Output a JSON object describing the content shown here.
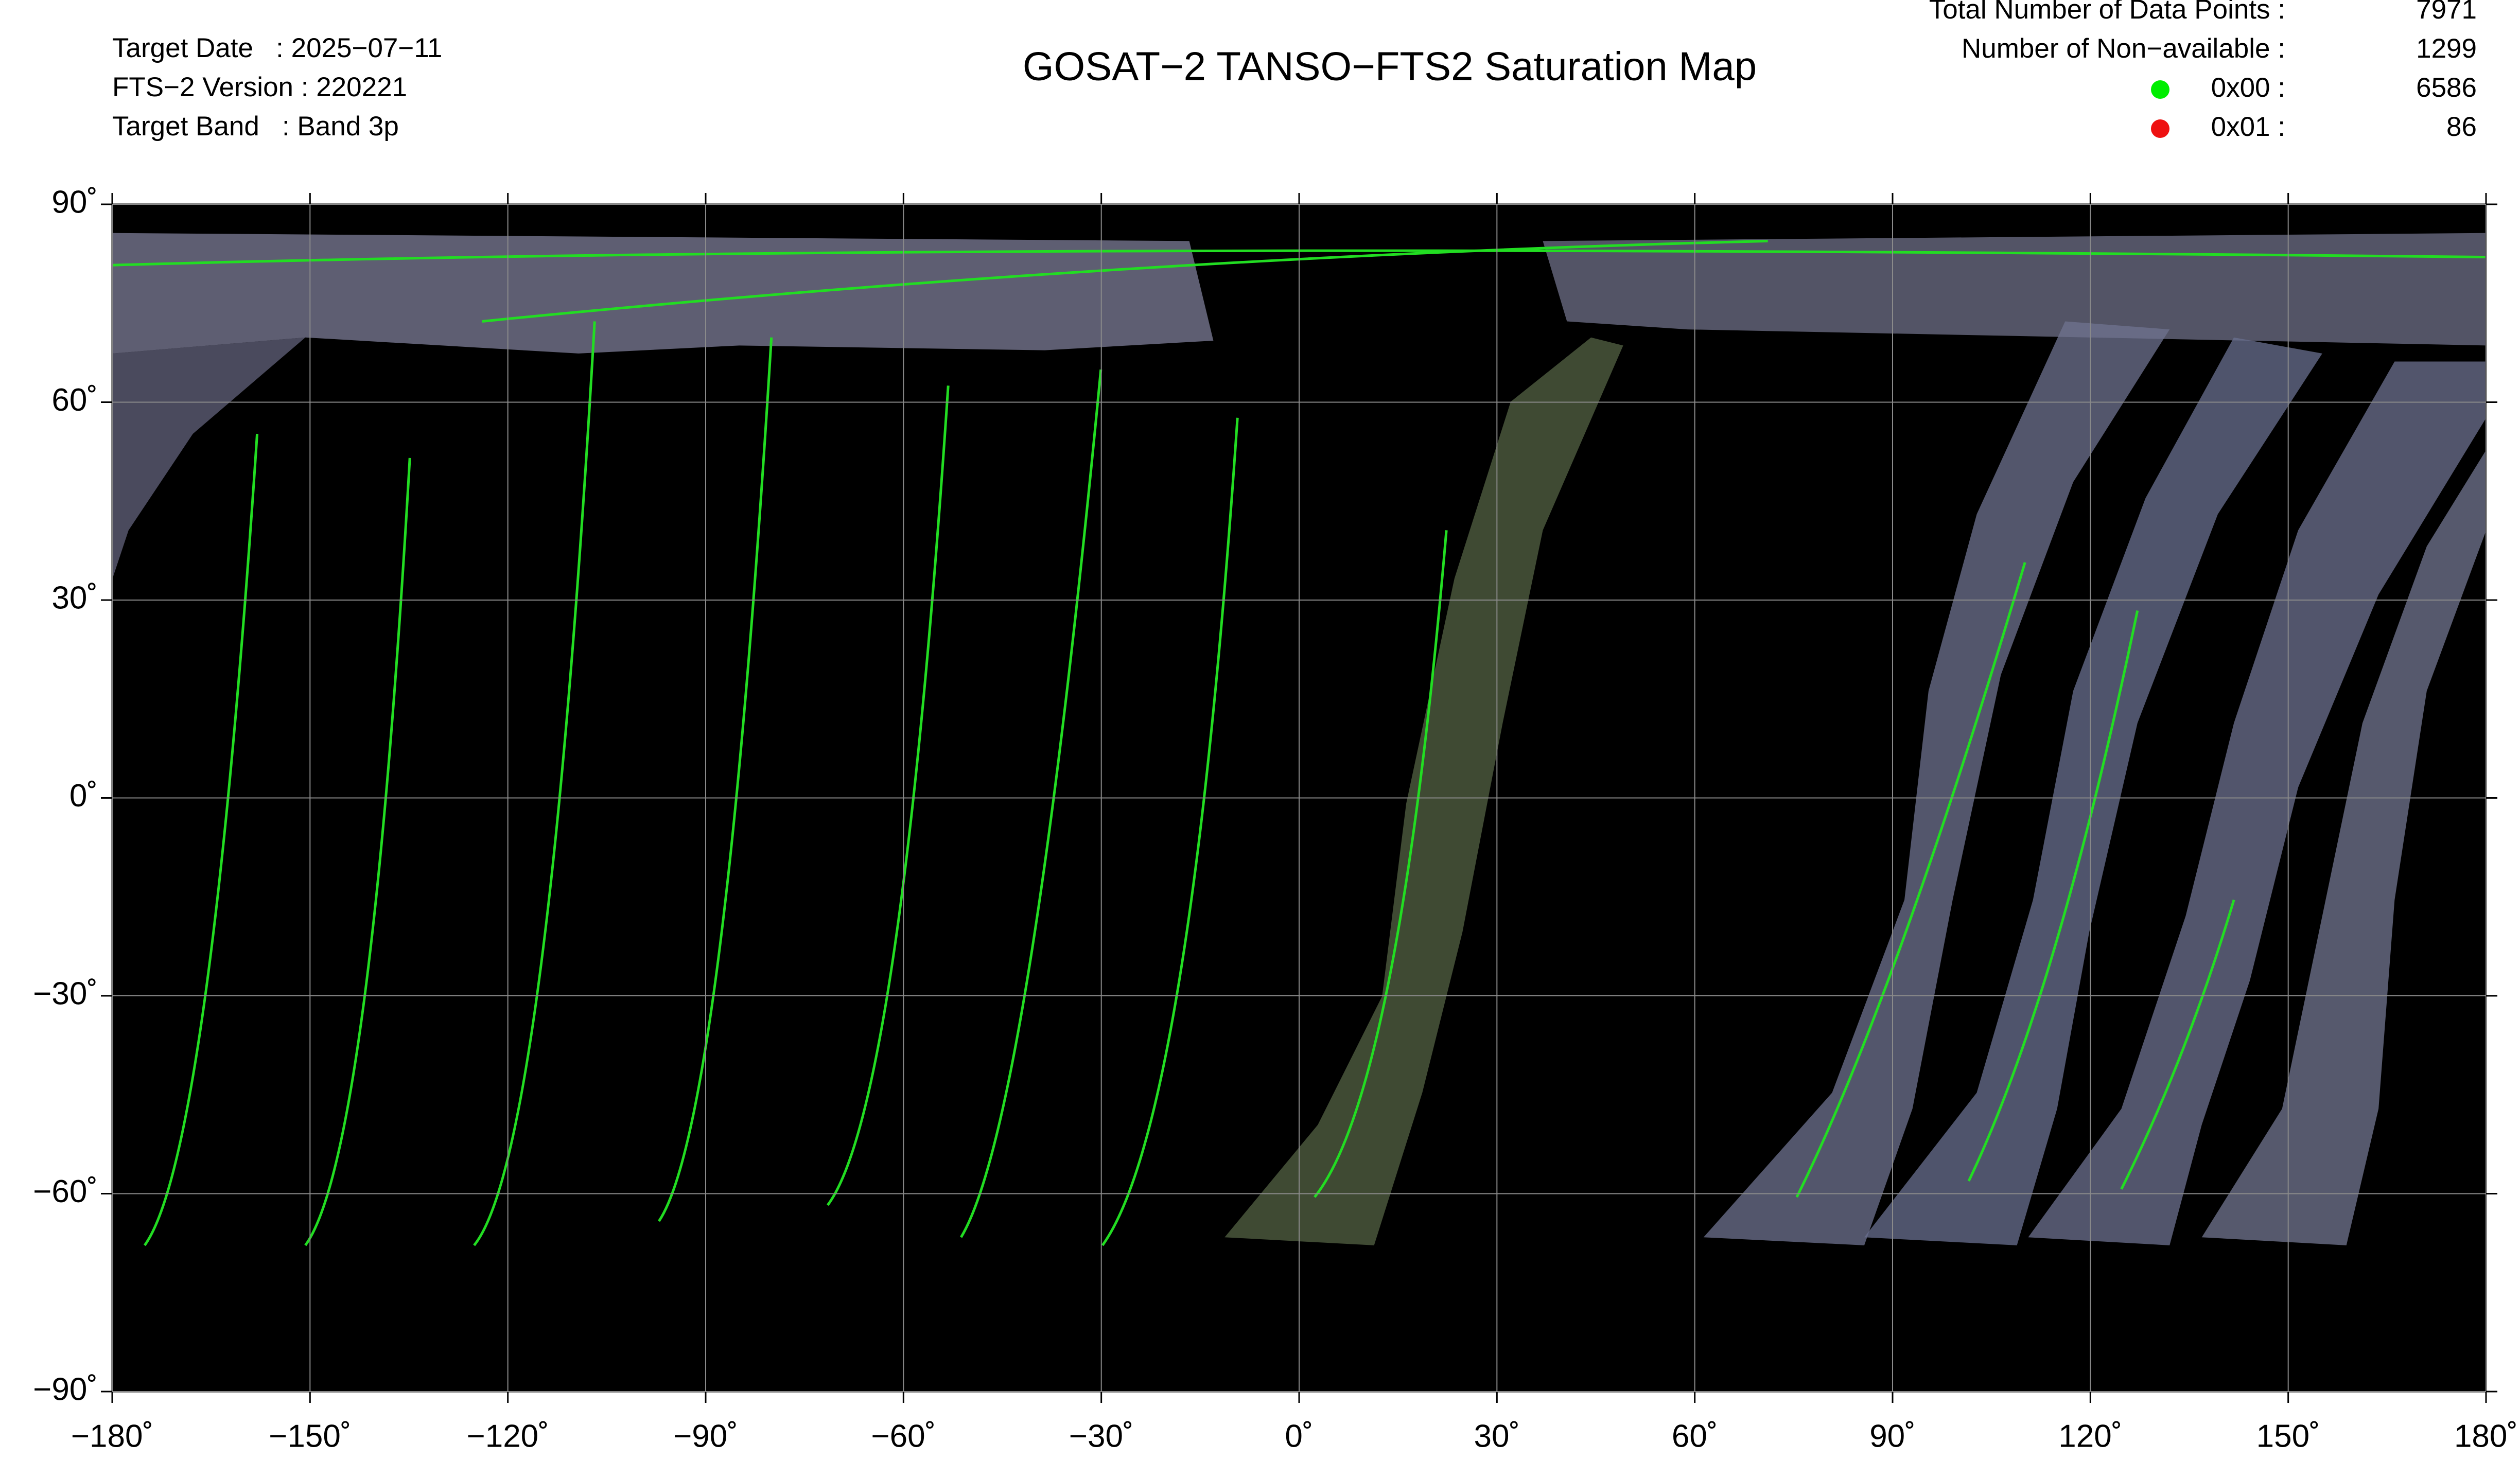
{
  "header": {
    "title": "GOSAT−2 TANSO−FTS2 Saturation Map",
    "info": [
      "Target Date   : 2025−07−11",
      "FTS−2 Version : 220221",
      "Target Band   : Band 3p"
    ]
  },
  "stats": {
    "total_label": "Total Number of Data Points :",
    "total": 7971,
    "unavailable_label": "Number of Non−available :",
    "unavailable": 1299,
    "legend": [
      {
        "name": "0x00 :",
        "color": "#00ee00",
        "count": 6586
      },
      {
        "name": "0x01 :",
        "color": "#ee1111",
        "count": 86
      }
    ]
  },
  "map": {
    "xlim": [
      -180,
      180
    ],
    "ylim": [
      -90,
      90
    ],
    "grid": true,
    "xticks": [
      {
        "value": -180,
        "label": "−180˚"
      },
      {
        "value": -150,
        "label": "−150˚"
      },
      {
        "value": -120,
        "label": "−120˚"
      },
      {
        "value": -90,
        "label": "−90˚"
      },
      {
        "value": -60,
        "label": "−60˚"
      },
      {
        "value": -30,
        "label": "−30˚"
      },
      {
        "value": 0,
        "label": "0˚"
      },
      {
        "value": 30,
        "label": "30˚"
      },
      {
        "value": 60,
        "label": "60˚"
      },
      {
        "value": 90,
        "label": "90˚"
      },
      {
        "value": 120,
        "label": "120˚"
      },
      {
        "value": 150,
        "label": "150˚"
      },
      {
        "value": 180,
        "label": "180˚"
      }
    ],
    "yticks": [
      {
        "value": 90,
        "label": "90˚"
      },
      {
        "value": 60,
        "label": "60˚"
      },
      {
        "value": 30,
        "label": "30˚"
      },
      {
        "value": 0,
        "label": "0˚"
      },
      {
        "value": -30,
        "label": "−30˚"
      },
      {
        "value": -60,
        "label": "−60˚"
      },
      {
        "value": -90,
        "label": "−90˚"
      }
    ]
  }
}
